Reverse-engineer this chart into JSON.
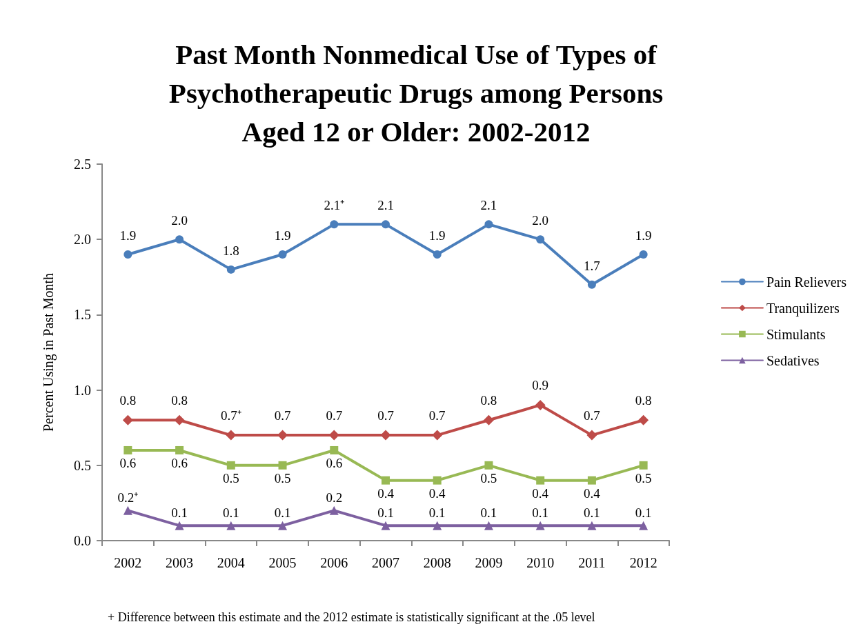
{
  "chart_data": {
    "type": "line",
    "title": "Past Month Nonmedical Use of Types of\nPsychotherapeutic Drugs among Persons\nAged 12 or Older: 2002-2012",
    "ylabel": "Percent Using in Past Month",
    "categories": [
      "2002",
      "2003",
      "2004",
      "2005",
      "2006",
      "2007",
      "2008",
      "2009",
      "2010",
      "2011",
      "2012"
    ],
    "series": [
      {
        "name": "Pain Relievers",
        "color": "#4a7ebb",
        "marker": "circle",
        "values": [
          1.9,
          2.0,
          1.8,
          1.9,
          2.1,
          2.1,
          1.9,
          2.1,
          2.0,
          1.7,
          1.9
        ],
        "value_labels": [
          "1.9",
          "2.0",
          "1.8",
          "1.9",
          "2.1⁺",
          "2.1",
          "1.9",
          "2.1",
          "2.0",
          "1.7",
          "1.9"
        ]
      },
      {
        "name": "Tranquilizers",
        "color": "#be4b48",
        "marker": "diamond",
        "values": [
          0.8,
          0.8,
          0.7,
          0.7,
          0.7,
          0.7,
          0.7,
          0.8,
          0.9,
          0.7,
          0.8
        ],
        "value_labels": [
          "0.8",
          "0.8",
          "0.7⁺",
          "0.7",
          "0.7",
          "0.7",
          "0.7",
          "0.8",
          "0.9",
          "0.7",
          "0.8"
        ]
      },
      {
        "name": "Stimulants",
        "color": "#98b954",
        "marker": "square",
        "values": [
          0.6,
          0.6,
          0.5,
          0.5,
          0.6,
          0.4,
          0.4,
          0.5,
          0.4,
          0.4,
          0.5
        ],
        "value_labels": [
          "0.6",
          "0.6",
          "0.5",
          "0.5",
          "0.6",
          "0.4",
          "0.4",
          "0.5",
          "0.4",
          "0.4",
          "0.5"
        ]
      },
      {
        "name": "Sedatives",
        "color": "#7d60a0",
        "marker": "triangle",
        "values": [
          0.2,
          0.1,
          0.1,
          0.1,
          0.2,
          0.1,
          0.1,
          0.1,
          0.1,
          0.1,
          0.1
        ],
        "value_labels": [
          "0.2⁺",
          "0.1",
          "0.1",
          "0.1",
          "0.2",
          "0.1",
          "0.1",
          "0.1",
          "0.1",
          "0.1",
          "0.1"
        ]
      }
    ],
    "ylim": [
      0,
      2.5
    ],
    "yticks": [
      {
        "value": 0,
        "label": "0.0"
      },
      {
        "value": 0.5,
        "label": "0.5"
      },
      {
        "value": 1,
        "label": "1.0"
      },
      {
        "value": 1.5,
        "label": "1.5"
      },
      {
        "value": 2,
        "label": "2.0"
      },
      {
        "value": 2.5,
        "label": "2.5"
      }
    ],
    "grid": false,
    "legend": "right",
    "line_style": "solid",
    "annotations": [
      "+ Difference between this estimate and the 2012 estimate is statistically significant at the .05 level"
    ]
  }
}
